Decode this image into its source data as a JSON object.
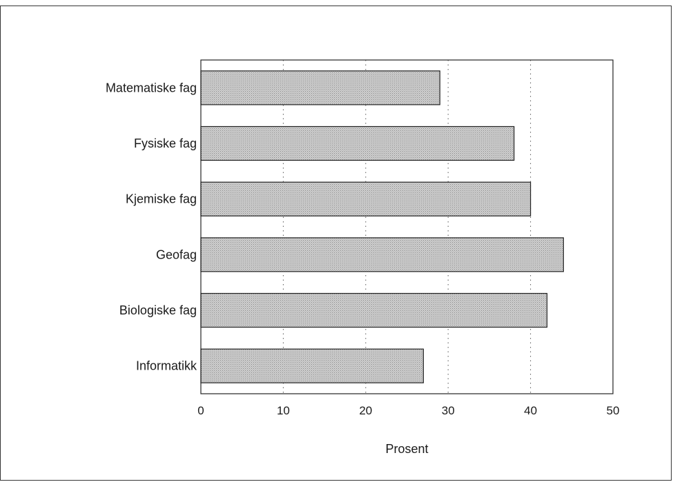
{
  "chart_data": {
    "type": "bar",
    "orientation": "horizontal",
    "categories": [
      "Matematiske fag",
      "Fysiske fag",
      "Kjemiske fag",
      "Geofag",
      "Biologiske fag",
      "Informatikk"
    ],
    "values": [
      29,
      38,
      40,
      44,
      42,
      27
    ],
    "xlabel": "Prosent",
    "xlim": [
      0,
      50
    ],
    "xticks": [
      0,
      10,
      20,
      30,
      40,
      50
    ],
    "grid": "vertical-dotted",
    "bar_color": "#bdbdbd"
  }
}
